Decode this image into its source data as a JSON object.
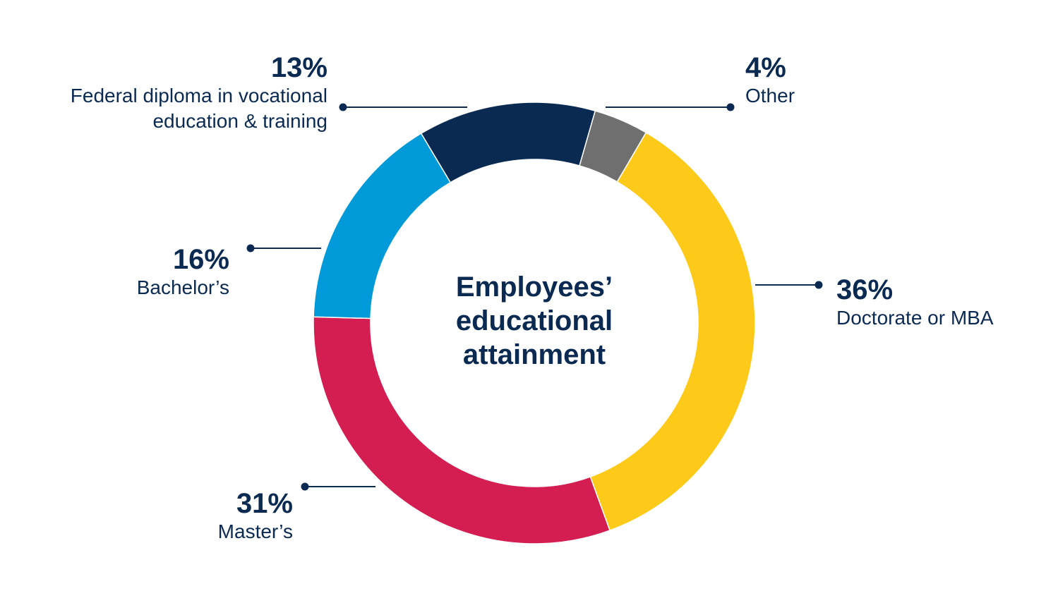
{
  "chart_data": {
    "type": "pie",
    "donut": true,
    "title_lines": [
      "Employees’",
      "educational",
      "attainment"
    ],
    "slices": [
      {
        "label_lines": [
          "Other"
        ],
        "pct_label": "4%",
        "value": 4,
        "color": "#6f6f6f"
      },
      {
        "label_lines": [
          "Doctorate or MBA"
        ],
        "pct_label": "36%",
        "value": 36,
        "color": "#fdca1a"
      },
      {
        "label_lines": [
          "Master’s"
        ],
        "pct_label": "31%",
        "value": 31,
        "color": "#d41e52"
      },
      {
        "label_lines": [
          "Bachelor’s"
        ],
        "pct_label": "16%",
        "value": 16,
        "color": "#009ad8"
      },
      {
        "label_lines": [
          "Federal diploma in vocational",
          "education & training"
        ],
        "pct_label": "13%",
        "value": 13,
        "color": "#0b2a52"
      }
    ],
    "legend": "none",
    "label_color": "#0b2a52"
  }
}
